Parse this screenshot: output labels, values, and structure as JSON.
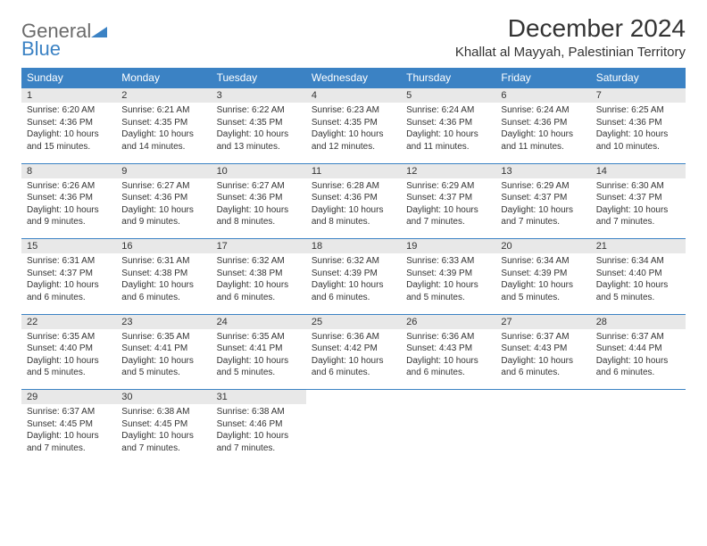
{
  "logo": {
    "part1": "General",
    "part2": "Blue"
  },
  "title": "December 2024",
  "location": "Khallat al Mayyah, Palestinian Territory",
  "colors": {
    "header_bg": "#3b82c4",
    "header_text": "#ffffff",
    "daynum_bg": "#e8e8e8",
    "border": "#3b82c4",
    "text": "#333333",
    "logo_gray": "#6b6b6b",
    "logo_blue": "#3b82c4"
  },
  "weekdays": [
    "Sunday",
    "Monday",
    "Tuesday",
    "Wednesday",
    "Thursday",
    "Friday",
    "Saturday"
  ],
  "days": [
    {
      "n": "1",
      "sr": "Sunrise: 6:20 AM",
      "ss": "Sunset: 4:36 PM",
      "d1": "Daylight: 10 hours",
      "d2": "and 15 minutes."
    },
    {
      "n": "2",
      "sr": "Sunrise: 6:21 AM",
      "ss": "Sunset: 4:35 PM",
      "d1": "Daylight: 10 hours",
      "d2": "and 14 minutes."
    },
    {
      "n": "3",
      "sr": "Sunrise: 6:22 AM",
      "ss": "Sunset: 4:35 PM",
      "d1": "Daylight: 10 hours",
      "d2": "and 13 minutes."
    },
    {
      "n": "4",
      "sr": "Sunrise: 6:23 AM",
      "ss": "Sunset: 4:35 PM",
      "d1": "Daylight: 10 hours",
      "d2": "and 12 minutes."
    },
    {
      "n": "5",
      "sr": "Sunrise: 6:24 AM",
      "ss": "Sunset: 4:36 PM",
      "d1": "Daylight: 10 hours",
      "d2": "and 11 minutes."
    },
    {
      "n": "6",
      "sr": "Sunrise: 6:24 AM",
      "ss": "Sunset: 4:36 PM",
      "d1": "Daylight: 10 hours",
      "d2": "and 11 minutes."
    },
    {
      "n": "7",
      "sr": "Sunrise: 6:25 AM",
      "ss": "Sunset: 4:36 PM",
      "d1": "Daylight: 10 hours",
      "d2": "and 10 minutes."
    },
    {
      "n": "8",
      "sr": "Sunrise: 6:26 AM",
      "ss": "Sunset: 4:36 PM",
      "d1": "Daylight: 10 hours",
      "d2": "and 9 minutes."
    },
    {
      "n": "9",
      "sr": "Sunrise: 6:27 AM",
      "ss": "Sunset: 4:36 PM",
      "d1": "Daylight: 10 hours",
      "d2": "and 9 minutes."
    },
    {
      "n": "10",
      "sr": "Sunrise: 6:27 AM",
      "ss": "Sunset: 4:36 PM",
      "d1": "Daylight: 10 hours",
      "d2": "and 8 minutes."
    },
    {
      "n": "11",
      "sr": "Sunrise: 6:28 AM",
      "ss": "Sunset: 4:36 PM",
      "d1": "Daylight: 10 hours",
      "d2": "and 8 minutes."
    },
    {
      "n": "12",
      "sr": "Sunrise: 6:29 AM",
      "ss": "Sunset: 4:37 PM",
      "d1": "Daylight: 10 hours",
      "d2": "and 7 minutes."
    },
    {
      "n": "13",
      "sr": "Sunrise: 6:29 AM",
      "ss": "Sunset: 4:37 PM",
      "d1": "Daylight: 10 hours",
      "d2": "and 7 minutes."
    },
    {
      "n": "14",
      "sr": "Sunrise: 6:30 AM",
      "ss": "Sunset: 4:37 PM",
      "d1": "Daylight: 10 hours",
      "d2": "and 7 minutes."
    },
    {
      "n": "15",
      "sr": "Sunrise: 6:31 AM",
      "ss": "Sunset: 4:37 PM",
      "d1": "Daylight: 10 hours",
      "d2": "and 6 minutes."
    },
    {
      "n": "16",
      "sr": "Sunrise: 6:31 AM",
      "ss": "Sunset: 4:38 PM",
      "d1": "Daylight: 10 hours",
      "d2": "and 6 minutes."
    },
    {
      "n": "17",
      "sr": "Sunrise: 6:32 AM",
      "ss": "Sunset: 4:38 PM",
      "d1": "Daylight: 10 hours",
      "d2": "and 6 minutes."
    },
    {
      "n": "18",
      "sr": "Sunrise: 6:32 AM",
      "ss": "Sunset: 4:39 PM",
      "d1": "Daylight: 10 hours",
      "d2": "and 6 minutes."
    },
    {
      "n": "19",
      "sr": "Sunrise: 6:33 AM",
      "ss": "Sunset: 4:39 PM",
      "d1": "Daylight: 10 hours",
      "d2": "and 5 minutes."
    },
    {
      "n": "20",
      "sr": "Sunrise: 6:34 AM",
      "ss": "Sunset: 4:39 PM",
      "d1": "Daylight: 10 hours",
      "d2": "and 5 minutes."
    },
    {
      "n": "21",
      "sr": "Sunrise: 6:34 AM",
      "ss": "Sunset: 4:40 PM",
      "d1": "Daylight: 10 hours",
      "d2": "and 5 minutes."
    },
    {
      "n": "22",
      "sr": "Sunrise: 6:35 AM",
      "ss": "Sunset: 4:40 PM",
      "d1": "Daylight: 10 hours",
      "d2": "and 5 minutes."
    },
    {
      "n": "23",
      "sr": "Sunrise: 6:35 AM",
      "ss": "Sunset: 4:41 PM",
      "d1": "Daylight: 10 hours",
      "d2": "and 5 minutes."
    },
    {
      "n": "24",
      "sr": "Sunrise: 6:35 AM",
      "ss": "Sunset: 4:41 PM",
      "d1": "Daylight: 10 hours",
      "d2": "and 5 minutes."
    },
    {
      "n": "25",
      "sr": "Sunrise: 6:36 AM",
      "ss": "Sunset: 4:42 PM",
      "d1": "Daylight: 10 hours",
      "d2": "and 6 minutes."
    },
    {
      "n": "26",
      "sr": "Sunrise: 6:36 AM",
      "ss": "Sunset: 4:43 PM",
      "d1": "Daylight: 10 hours",
      "d2": "and 6 minutes."
    },
    {
      "n": "27",
      "sr": "Sunrise: 6:37 AM",
      "ss": "Sunset: 4:43 PM",
      "d1": "Daylight: 10 hours",
      "d2": "and 6 minutes."
    },
    {
      "n": "28",
      "sr": "Sunrise: 6:37 AM",
      "ss": "Sunset: 4:44 PM",
      "d1": "Daylight: 10 hours",
      "d2": "and 6 minutes."
    },
    {
      "n": "29",
      "sr": "Sunrise: 6:37 AM",
      "ss": "Sunset: 4:45 PM",
      "d1": "Daylight: 10 hours",
      "d2": "and 7 minutes."
    },
    {
      "n": "30",
      "sr": "Sunrise: 6:38 AM",
      "ss": "Sunset: 4:45 PM",
      "d1": "Daylight: 10 hours",
      "d2": "and 7 minutes."
    },
    {
      "n": "31",
      "sr": "Sunrise: 6:38 AM",
      "ss": "Sunset: 4:46 PM",
      "d1": "Daylight: 10 hours",
      "d2": "and 7 minutes."
    }
  ]
}
